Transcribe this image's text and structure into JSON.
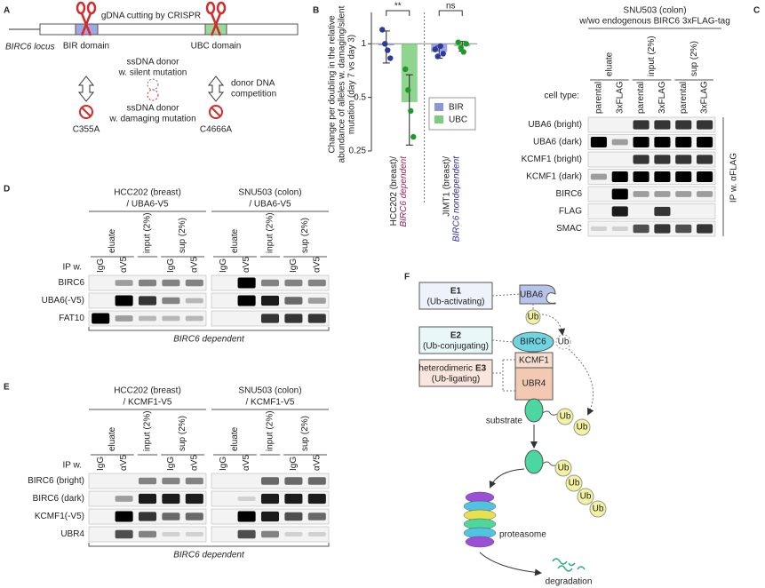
{
  "panel_a": {
    "letter": "A",
    "crispr": "gDNA cutting by CRISPR",
    "locus": "BIRC6 locus",
    "bir_domain": "BIR domain",
    "ubc_domain": "UBC domain",
    "silent_donor": [
      "ssDNA donor",
      "w. silent mutation"
    ],
    "competition": [
      "donor DNA",
      "competition"
    ],
    "damaging_donor": [
      "ssDNA donor",
      "w. damaging mutation"
    ],
    "mutations": [
      "C355A",
      "C4666A"
    ]
  },
  "panel_b": {
    "letter": "B"
  },
  "chart_data": {
    "type": "bar",
    "ylabel": [
      "Change per doubling in the relative",
      "abundance of alleles w. damaging/silent",
      "mutation (day 7 vs day 3)"
    ],
    "categories": [
      "HCC202 (breast)/ BIRC6 dependent",
      "JIMT1 (breast)/ BIRC6 nondependent"
    ],
    "series": [
      {
        "name": "BIR",
        "color": "#8c96d9",
        "point_color": "#2b3a9e",
        "values": [
          0.98,
          0.9
        ],
        "errors": [
          0.2,
          0.07
        ],
        "points": [
          [
            1.2,
            1.0,
            0.92,
            0.83
          ],
          [
            0.93,
            0.85,
            0.97,
            0.88
          ]
        ]
      },
      {
        "name": "UBC",
        "color": "#7bcc7b",
        "point_color": "#1f9a2a",
        "values": [
          0.47,
          0.97
        ],
        "errors": [
          0.2,
          0.06
        ],
        "points": [
          [
            0.72,
            0.55,
            0.42,
            0.3
          ],
          [
            1.02,
            0.95,
            0.9,
            1.0
          ]
        ]
      }
    ],
    "ylim": [
      0.25,
      1.5
    ],
    "yticks": [
      0.25,
      0.5,
      1
    ],
    "log_scale": true,
    "reference_line": 1,
    "annotations": [
      "**",
      "ns"
    ],
    "legend": "right"
  },
  "panel_c": {
    "letter": "C",
    "title": [
      "SNU503 (colon)",
      "w/wo endogenous BIRC6 3xFLAG-tag"
    ],
    "fractions": [
      "eluate",
      "input (2%)",
      "sup (2%)"
    ],
    "cell_type_label": "cell type:",
    "cell_types": [
      "parental",
      "3xFLAG"
    ],
    "rows": [
      "UBA6 (bright)",
      "UBA6 (dark)",
      "KCMF1 (bright)",
      "KCMF1 (dark)",
      "BIRC6",
      "FLAG",
      "SMAC"
    ],
    "ip_label": "IP w. αFLAG"
  },
  "panel_d": {
    "letter": "D",
    "cell_lines": [
      [
        "HCC202 (breast)",
        "/ UBA6-V5"
      ],
      [
        "SNU503 (colon)",
        "/ UBA6-V5"
      ]
    ],
    "fractions": [
      {
        "label": "eluate",
        "lanes": [
          "IgG",
          "αV5"
        ]
      },
      {
        "label": "input (2%)",
        "lanes": []
      },
      {
        "label": "sup (2%)",
        "lanes": [
          "IgG",
          "αV5"
        ]
      }
    ],
    "ip_label": "IP w.",
    "rows": [
      "BIRC6",
      "UBA6(-V5)",
      "FAT10"
    ],
    "footer": "BIRC6 dependent"
  },
  "panel_e": {
    "letter": "E",
    "cell_lines": [
      [
        "HCC202 (breast)",
        "/ KCMF1-V5"
      ],
      [
        "SNU503 (colon)",
        "/ KCMF1-V5"
      ]
    ],
    "fractions": [
      {
        "label": "eluate",
        "lanes": [
          "IgG",
          "αV5"
        ]
      },
      {
        "label": "input (2%)",
        "lanes": []
      },
      {
        "label": "sup (2%)",
        "lanes": [
          "IgG",
          "αV5"
        ]
      }
    ],
    "ip_label": "IP w.",
    "rows": [
      "BIRC6 (bright)",
      "BIRC6 (dark)",
      "KCMF1(-V5)",
      "UBR4"
    ],
    "footer": "BIRC6 dependent"
  },
  "panel_f": {
    "letter": "F",
    "e1": {
      "label": "E1",
      "role": "(Ub-activating)"
    },
    "e2": {
      "label": "E2",
      "role": "(Ub-conjugating)"
    },
    "e3": {
      "prefix": "heterodimeric",
      "label": "E3",
      "role": "(Ub-ligating)"
    },
    "proteins": {
      "uba6": "UBA6",
      "birc6": "BIRC6",
      "kcmf1": "KCMF1",
      "ubr4": "UBR4"
    },
    "ub": "Ub",
    "substrate": "substrate",
    "proteasome": "proteasome",
    "degradation": "degradation"
  }
}
